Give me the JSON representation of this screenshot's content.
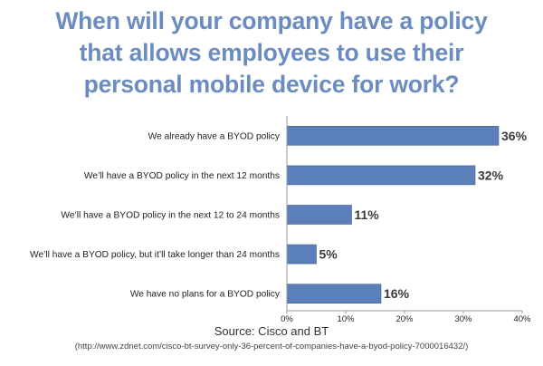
{
  "title_lines": [
    "When will your company have a policy",
    "that allows employees to use their",
    "personal mobile device for work?"
  ],
  "source": "Source: Cisco and BT",
  "url": "(http://www.zdnet.com/cisco-bt-survey-only-36-percent-of-companies-have-a-byod-policy-7000016432/)",
  "colors": {
    "title": "#6b8cc0",
    "bar": "#5b7fb8",
    "bar_stroke": "#3f5f93",
    "axis": "#999999",
    "text": "#222222"
  },
  "chart_data": {
    "type": "bar",
    "orientation": "horizontal",
    "title": "When will your company have a policy that allows employees to use their personal mobile device for work?",
    "categories": [
      "We already have a BYOD policy",
      "We’ll have a BYOD policy in the next 12 months",
      "We’ll have a BYOD policy in the next 12 to 24 months",
      "We’ll have a BYOD policy, but it’ll take longer than 24 months",
      "We have no plans for a BYOD policy"
    ],
    "values": [
      36,
      32,
      11,
      5,
      16
    ],
    "data_labels": [
      "36%",
      "32%",
      "11%",
      "5%",
      "16%"
    ],
    "xlim": [
      0,
      40
    ],
    "x_ticks": [
      0,
      10,
      20,
      30,
      40
    ],
    "x_tick_labels": [
      "0%",
      "10%",
      "20%",
      "30%",
      "40%"
    ],
    "xlabel": "",
    "ylabel": "",
    "grid": false,
    "legend": "none"
  }
}
